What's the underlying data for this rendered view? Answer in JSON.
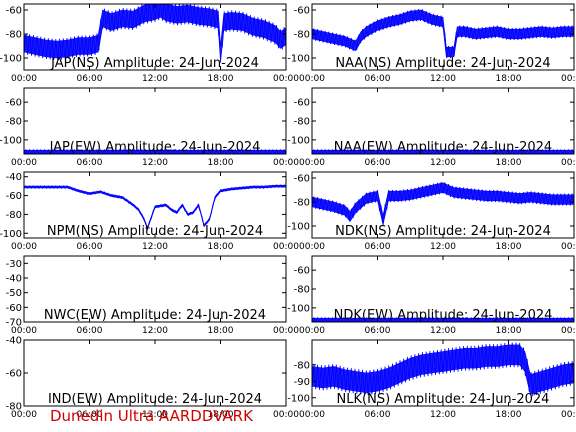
{
  "footer": "Dunedin Ultra AARDDVARK",
  "colors": {
    "signal": "#0000ff",
    "axes": "#000000",
    "footer": "#d40000"
  },
  "x_ticks": [
    "00:00",
    "06:00",
    "12:00",
    "18:00",
    "00:00"
  ],
  "chart_data": [
    {
      "type": "line",
      "title": "JAP(NS) Amplitude: 24-Jun-2024",
      "xlabel": "",
      "ylabel": "",
      "xlim": [
        0,
        24
      ],
      "ylim": [
        -110,
        -55
      ],
      "yticks": [
        -100,
        -80,
        -60
      ],
      "x_ticks": [
        "00:00",
        "06:00",
        "12:00",
        "18:00",
        "00:00"
      ],
      "grid": false,
      "series": [
        {
          "x": [
            0,
            1,
            2,
            3,
            4,
            5,
            6,
            6.8,
            7.2,
            8,
            9,
            10,
            11,
            12,
            12.5,
            13,
            14,
            15,
            16,
            17,
            17.8,
            18,
            18.3,
            19,
            20,
            21,
            22,
            23,
            23.5,
            24
          ],
          "y": [
            -88,
            -90,
            -92,
            -93,
            -92,
            -90,
            -90,
            -88,
            -67,
            -70,
            -67,
            -68,
            -63,
            -61,
            -59,
            -62,
            -64,
            -63,
            -65,
            -66,
            -68,
            -97,
            -70,
            -69,
            -70,
            -74,
            -76,
            -80,
            -85,
            -82
          ],
          "band": 7
        }
      ]
    },
    {
      "type": "line",
      "title": "NAA(NS) Amplitude: 24-Jun-2024",
      "xlabel": "",
      "ylabel": "",
      "xlim": [
        0,
        24
      ],
      "ylim": [
        -110,
        -55
      ],
      "yticks": [
        -100,
        -80,
        -60
      ],
      "x_ticks": [
        "00:00",
        "06:00",
        "12:00",
        "18:00",
        "00:00"
      ],
      "grid": false,
      "series": [
        {
          "x": [
            0,
            1,
            2,
            3,
            4,
            4.5,
            5,
            6,
            7,
            8,
            9,
            10,
            11,
            12,
            12.3,
            13,
            13.3,
            14,
            15,
            16,
            17,
            18,
            19,
            20,
            21,
            22,
            23,
            24
          ],
          "y": [
            -80,
            -82,
            -84,
            -86,
            -90,
            -82,
            -78,
            -73,
            -70,
            -68,
            -65,
            -64,
            -68,
            -70,
            -95,
            -95,
            -78,
            -78,
            -80,
            -79,
            -78,
            -80,
            -80,
            -79,
            -78,
            -79,
            -78,
            -78
          ],
          "band": 4
        }
      ]
    },
    {
      "type": "line",
      "title": "JAP(EW) Amplitude: 24-Jun-2024",
      "xlabel": "",
      "ylabel": "",
      "xlim": [
        0,
        24
      ],
      "ylim": [
        -115,
        -45
      ],
      "yticks": [
        -100,
        -80,
        -60
      ],
      "x_ticks": [
        "00:00",
        "06:00",
        "12:00",
        "18:00",
        "00:00"
      ],
      "grid": false,
      "series": [
        {
          "x": [
            0,
            6,
            12,
            18,
            24
          ],
          "y": [
            -113,
            -113,
            -113,
            -113,
            -113
          ],
          "band": 2
        }
      ]
    },
    {
      "type": "line",
      "title": "NAA(EW) Amplitude: 24-Jun-2024",
      "xlabel": "",
      "ylabel": "",
      "xlim": [
        0,
        24
      ],
      "ylim": [
        -115,
        -45
      ],
      "yticks": [
        -100,
        -80,
        -60
      ],
      "x_ticks": [
        "00:00",
        "06:00",
        "12:00",
        "18:00",
        "00:00"
      ],
      "grid": false,
      "series": [
        {
          "x": [
            0,
            6,
            12,
            18,
            24
          ],
          "y": [
            -113,
            -113,
            -113,
            -113,
            -113
          ],
          "band": 2
        }
      ]
    },
    {
      "type": "line",
      "title": "NPM(NS) Amplitude: 24-Jun-2024",
      "xlabel": "",
      "ylabel": "",
      "xlim": [
        0,
        24
      ],
      "ylim": [
        -105,
        -35
      ],
      "yticks": [
        -100,
        -80,
        -60,
        -40
      ],
      "x_ticks": [
        "00:00",
        "06:00",
        "12:00",
        "18:00",
        "00:00"
      ],
      "grid": false,
      "series": [
        {
          "x": [
            0,
            2,
            4,
            5,
            6,
            7,
            8,
            9,
            10,
            10.5,
            11,
            11.3,
            11.6,
            12,
            13,
            13.5,
            14,
            14.5,
            15,
            15.5,
            16,
            16.5,
            17,
            17.5,
            18,
            19,
            20,
            21,
            22,
            23,
            24
          ],
          "y": [
            -51,
            -51,
            -51,
            -55,
            -58,
            -56,
            -60,
            -62,
            -70,
            -75,
            -85,
            -95,
            -85,
            -72,
            -70,
            -75,
            -78,
            -70,
            -80,
            -78,
            -70,
            -92,
            -85,
            -62,
            -55,
            -53,
            -52,
            -51,
            -51,
            -50,
            -50
          ],
          "band": 1
        }
      ]
    },
    {
      "type": "line",
      "title": "NDK(NS) Amplitude: 24-Jun-2024",
      "xlabel": "",
      "ylabel": "",
      "xlim": [
        0,
        24
      ],
      "ylim": [
        -110,
        -55
      ],
      "yticks": [
        -100,
        -80,
        -60
      ],
      "x_ticks": [
        "00:00",
        "06:00",
        "12:00",
        "18:00",
        "00:00"
      ],
      "grid": false,
      "series": [
        {
          "x": [
            0,
            1,
            2,
            3,
            3.5,
            4,
            5,
            6,
            6.5,
            7,
            8,
            9,
            10,
            11,
            12,
            13,
            14,
            15,
            16,
            17,
            18,
            19,
            20,
            21,
            22,
            23,
            24
          ],
          "y": [
            -80,
            -82,
            -84,
            -87,
            -92,
            -85,
            -77,
            -75,
            -95,
            -75,
            -75,
            -74,
            -72,
            -70,
            -68,
            -72,
            -73,
            -74,
            -75,
            -75,
            -76,
            -77,
            -76,
            -77,
            -78,
            -78,
            -78
          ],
          "band": 4
        }
      ]
    },
    {
      "type": "line",
      "title": "NWC(EW) Amplitude: 24-Jun-2024",
      "xlabel": "",
      "ylabel": "",
      "xlim": [
        0,
        24
      ],
      "ylim": [
        -70,
        -25
      ],
      "yticks": [
        -70,
        -60,
        -50,
        -40,
        -30
      ],
      "x_ticks": [
        "00:00",
        "06:00",
        "12:00",
        "18:00",
        "00:00"
      ],
      "grid": false,
      "series": []
    },
    {
      "type": "line",
      "title": "NDK(EW) Amplitude: 24-Jun-2024",
      "xlabel": "",
      "ylabel": "",
      "xlim": [
        0,
        24
      ],
      "ylim": [
        -115,
        -45
      ],
      "yticks": [
        -100,
        -80,
        -60
      ],
      "x_ticks": [
        "00:00",
        "06:00",
        "12:00",
        "18:00",
        "00:00"
      ],
      "grid": false,
      "series": [
        {
          "x": [
            0,
            6,
            12,
            18,
            24
          ],
          "y": [
            -113,
            -113,
            -113,
            -113,
            -113
          ],
          "band": 2
        }
      ]
    },
    {
      "type": "line",
      "title": "IND(EW) Amplitude: 24-Jun-2024",
      "xlabel": "",
      "ylabel": "",
      "xlim": [
        0,
        24
      ],
      "ylim": [
        -80,
        -40
      ],
      "yticks": [
        -80,
        -60,
        -40
      ],
      "x_ticks": [
        "00:00",
        "06:00",
        "12:00",
        "18:00",
        "00:00"
      ],
      "grid": false,
      "series": []
    },
    {
      "type": "line",
      "title": "NLK(NS) Amplitude: 24-Jun-2024",
      "xlabel": "",
      "ylabel": "",
      "xlim": [
        0,
        24
      ],
      "ylim": [
        -105,
        -65
      ],
      "yticks": [
        -100,
        -90,
        -80
      ],
      "x_ticks": [
        "00:00",
        "06:00",
        "12:00",
        "18:00",
        "00:00"
      ],
      "grid": false,
      "series": [
        {
          "x": [
            0,
            1,
            2,
            3,
            4,
            5,
            6,
            7,
            8,
            9,
            10,
            11,
            12,
            13,
            14,
            15,
            16,
            17,
            18,
            19,
            19.5,
            20,
            21,
            22,
            23,
            24
          ],
          "y": [
            -87,
            -88,
            -87,
            -89,
            -90,
            -91,
            -90,
            -88,
            -85,
            -82,
            -80,
            -79,
            -78,
            -77,
            -76,
            -76,
            -75,
            -75,
            -74,
            -74,
            -78,
            -92,
            -90,
            -88,
            -86,
            -85
          ],
          "band": 6
        }
      ]
    }
  ]
}
